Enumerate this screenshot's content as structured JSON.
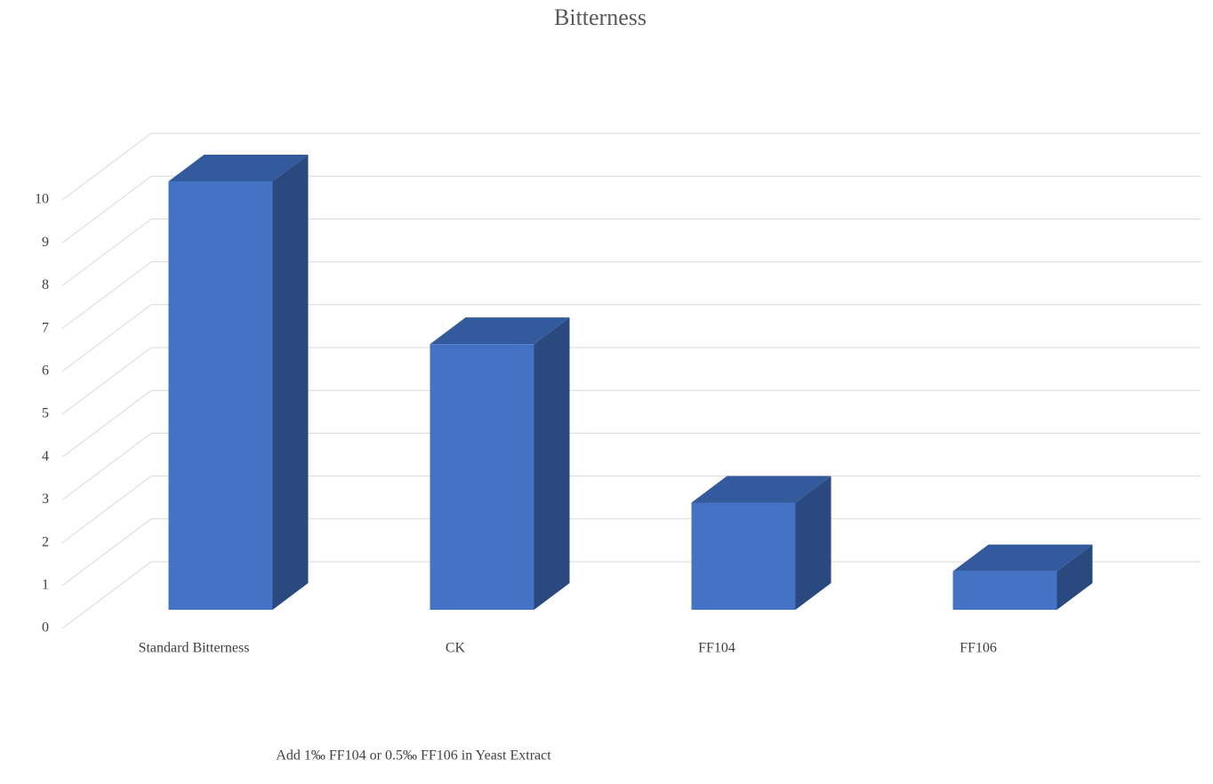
{
  "chart_data": {
    "type": "bar3d",
    "title": "Bitterness",
    "x_label": "Add 1‰ FF104 or 0.5‰  FF106 in Yeast Extract",
    "categories": [
      "Standard Bitterness",
      "CK",
      "FF104",
      "FF106"
    ],
    "values": [
      10,
      6.2,
      2.5,
      0.9
    ],
    "color": "#4472c4",
    "top_color": "#335a9c",
    "side_color": "#2a4a7f",
    "ylim": [
      0,
      10
    ],
    "yticks": [
      0,
      1,
      2,
      3,
      4,
      5,
      6,
      7,
      8,
      9,
      10
    ],
    "grid": true
  }
}
